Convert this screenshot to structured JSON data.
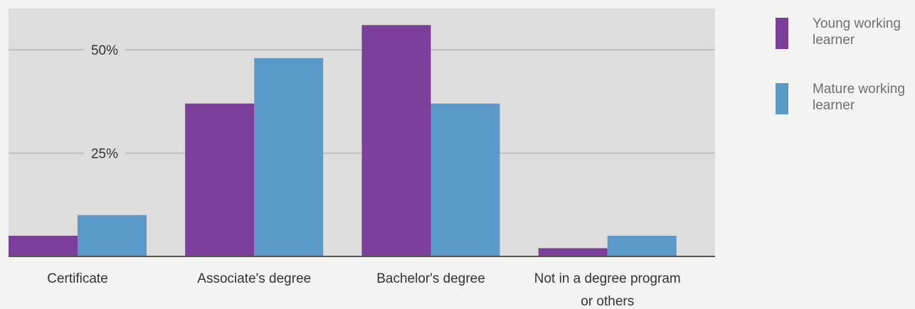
{
  "chart_data": {
    "type": "bar",
    "title": "",
    "xlabel": "",
    "ylabel": "",
    "ylim": [
      0,
      60
    ],
    "yticks": [
      {
        "value": 25,
        "label": "25%"
      },
      {
        "value": 50,
        "label": "50%"
      }
    ],
    "grid": true,
    "legend_position": "top-right",
    "categories": [
      [
        "Certificate"
      ],
      [
        "Associate's degree"
      ],
      [
        "Bachelor's degree"
      ],
      [
        "Not in a degree program",
        "or others"
      ]
    ],
    "series": [
      {
        "name_lines": [
          "Young working",
          "learner"
        ],
        "name": "Young working learner",
        "color": "#7b3f99",
        "values": [
          5,
          37,
          56,
          2
        ]
      },
      {
        "name_lines": [
          "Mature working",
          "learner"
        ],
        "name": "Mature working learner",
        "color": "#5b9ac8",
        "values": [
          10,
          48,
          37,
          5
        ]
      }
    ],
    "colors": {
      "plot_background": "#dddddd",
      "gridline": "#bfbfbf",
      "baseline": "#555555"
    }
  }
}
